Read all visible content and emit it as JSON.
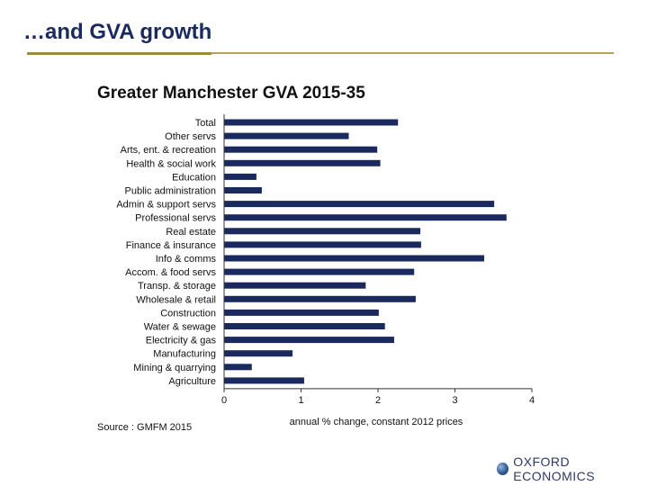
{
  "slide": {
    "title": "…and GVA growth",
    "logo_text": "OXFORD ECONOMICS",
    "accent_color": "#1b2a5e",
    "rule_color": "#b8a25a"
  },
  "chart_data": {
    "type": "bar",
    "orientation": "horizontal",
    "title": "Greater Manchester GVA 2015-35",
    "xlabel": "annual % change, constant 2012 prices",
    "ylabel": "",
    "source": "Source : GMFM 2015",
    "xlim": [
      0,
      4
    ],
    "xticks": [
      0,
      1,
      2,
      3,
      4
    ],
    "grid": false,
    "bar_color": "#1b2a5e",
    "categories": [
      "Total",
      "Other servs",
      "Arts, ent. & recreation",
      "Health & social work",
      "Education",
      "Public administration",
      "Admin & support servs",
      "Professional servs",
      "Real estate",
      "Finance & insurance",
      "Info & comms",
      "Accom. & food servs",
      "Transp. & storage",
      "Wholesale & retail",
      "Construction",
      "Water & sewage",
      "Electricity & gas",
      "Manufacturing",
      "Mining & quarrying",
      "Agriculture"
    ],
    "values": [
      2.26,
      1.62,
      1.99,
      2.03,
      0.42,
      0.49,
      3.51,
      3.67,
      2.55,
      2.56,
      3.38,
      2.47,
      1.84,
      2.49,
      2.01,
      2.09,
      2.21,
      0.89,
      0.36,
      1.04
    ]
  }
}
